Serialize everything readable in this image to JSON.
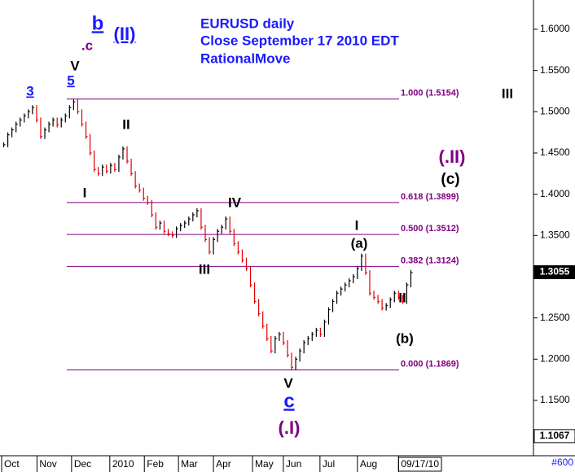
{
  "chart_data": {
    "type": "bar",
    "title": [
      "EURUSD daily",
      "Close September 17 2010 EDT",
      "RationalMove"
    ],
    "series": [
      {
        "name": "EURUSD",
        "up_color": "#000000",
        "down_color": "#e00000",
        "values": [
          1.46,
          1.472,
          1.478,
          1.485,
          1.49,
          1.495,
          1.5,
          1.505,
          1.49,
          1.47,
          1.478,
          1.485,
          1.49,
          1.484,
          1.49,
          1.495,
          1.505,
          1.512,
          1.5,
          1.485,
          1.47,
          1.45,
          1.43,
          1.425,
          1.433,
          1.428,
          1.435,
          1.43,
          1.445,
          1.455,
          1.44,
          1.425,
          1.41,
          1.405,
          1.395,
          1.39,
          1.375,
          1.36,
          1.365,
          1.355,
          1.352,
          1.35,
          1.358,
          1.362,
          1.365,
          1.37,
          1.375,
          1.38,
          1.36,
          1.345,
          1.33,
          1.345,
          1.355,
          1.36,
          1.37,
          1.355,
          1.34,
          1.33,
          1.32,
          1.31,
          1.29,
          1.27,
          1.255,
          1.24,
          1.225,
          1.21,
          1.225,
          1.23,
          1.22,
          1.205,
          1.19,
          1.2,
          1.21,
          1.22,
          1.225,
          1.23,
          1.235,
          1.23,
          1.245,
          1.26,
          1.27,
          1.28,
          1.285,
          1.29,
          1.295,
          1.3,
          1.31,
          1.325,
          1.305,
          1.28,
          1.275,
          1.27,
          1.262,
          1.265,
          1.272,
          1.28,
          1.275,
          1.27,
          1.29,
          1.305
        ]
      }
    ],
    "xlim": [
      0,
      100
    ],
    "xticks": [
      {
        "value": 0,
        "label": "Oct"
      },
      {
        "value": 8.6,
        "label": "Nov"
      },
      {
        "value": 17,
        "label": "Dec"
      },
      {
        "value": 26.3,
        "label": "2010"
      },
      {
        "value": 34.7,
        "label": "Feb"
      },
      {
        "value": 43,
        "label": "Mar"
      },
      {
        "value": 51.5,
        "label": "Apr"
      },
      {
        "value": 61,
        "label": "May"
      },
      {
        "value": 68.5,
        "label": "Jun"
      },
      {
        "value": 77.4,
        "label": "Jul"
      },
      {
        "value": 86.5,
        "label": "Aug"
      },
      {
        "value": 96.5,
        "label": "09/17/10"
      }
    ],
    "ylim": [
      1.0829,
      1.6355
    ],
    "yticks": [
      {
        "value": 1.15,
        "label": "1.1500"
      },
      {
        "value": 1.2,
        "label": "1.2000"
      },
      {
        "value": 1.25,
        "label": "1.2500"
      },
      {
        "value": 1.3,
        "label": "1.3000"
      },
      {
        "value": 1.35,
        "label": "1.3500"
      },
      {
        "value": 1.4,
        "label": "1.4000"
      },
      {
        "value": 1.45,
        "label": "1.4500"
      },
      {
        "value": 1.5,
        "label": "1.5000"
      },
      {
        "value": 1.55,
        "label": "1.5500"
      },
      {
        "value": 1.6,
        "label": "1.6000"
      }
    ],
    "price_labels": [
      {
        "value": 1.3055,
        "label": "1.3055"
      },
      {
        "value": 1.1067,
        "label": "1.1067"
      }
    ],
    "fib_color": "#800080",
    "fib_levels": [
      {
        "value": 1.5154,
        "label": "1.000 (1.5154)"
      },
      {
        "value": 1.3899,
        "label": "0.618 (1.3899)"
      },
      {
        "value": 1.3512,
        "label": "0.500 (1.3512)"
      },
      {
        "value": 1.3124,
        "label": "0.382 (1.3124)"
      },
      {
        "value": 1.1869,
        "label": "0.000 (1.1869)"
      }
    ],
    "annotations": [
      {
        "text": "b",
        "color": "#1a1aff"
      },
      {
        "text": "(II)",
        "color": "#1a1aff"
      },
      {
        "text": ".c",
        "color": "#800080"
      },
      {
        "text": "V",
        "color": "#000000"
      },
      {
        "text": "5",
        "color": "#1a1aff"
      },
      {
        "text": "3",
        "color": "#1a1aff"
      },
      {
        "text": "II",
        "color": "#000000"
      },
      {
        "text": "I",
        "color": "#000000"
      },
      {
        "text": "IV",
        "color": "#000000"
      },
      {
        "text": "III",
        "color": "#000000"
      },
      {
        "text": "I",
        "color": "#000000"
      },
      {
        "text": "(a)",
        "color": "#000000"
      },
      {
        "text": "II",
        "color": "#000000"
      },
      {
        "text": "(b)",
        "color": "#000000"
      },
      {
        "text": "V",
        "color": "#000000"
      },
      {
        "text": "c",
        "color": "#1a1aff"
      },
      {
        "text": "(.I)",
        "color": "#800080"
      },
      {
        "text": "(.II)",
        "color": "#800080"
      },
      {
        "text": "(c)",
        "color": "#000000"
      },
      {
        "text": "III",
        "color": "#000000"
      }
    ],
    "footer": "#600"
  }
}
